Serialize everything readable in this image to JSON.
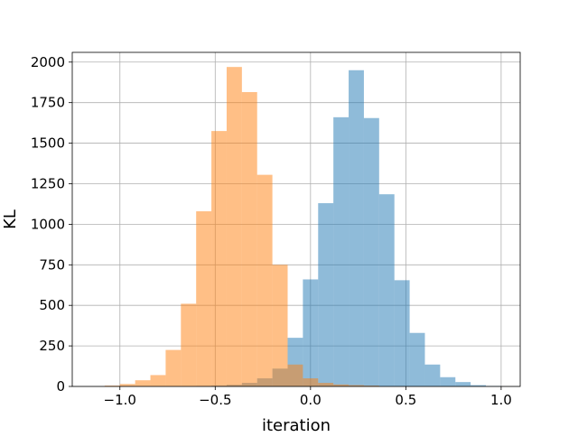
{
  "chart_data": {
    "type": "bar",
    "subtype": "overlapping-histogram",
    "title": "",
    "xlabel": "iteration",
    "ylabel": "KL",
    "xlim": [
      -1.25,
      1.1
    ],
    "ylim": [
      0,
      2060
    ],
    "x_ticks": [
      -1.0,
      -0.5,
      0.0,
      0.5,
      1.0
    ],
    "x_tick_labels": [
      "−1.0",
      "−0.5",
      "0.0",
      "0.5",
      "1.0"
    ],
    "y_ticks": [
      0,
      250,
      500,
      750,
      1000,
      1250,
      1500,
      1750,
      2000
    ],
    "y_tick_labels": [
      "0",
      "250",
      "500",
      "750",
      "1000",
      "1250",
      "1500",
      "1750",
      "2000"
    ],
    "grid": true,
    "legend": false,
    "bin_width": 0.08,
    "series": [
      {
        "color": "#1f77b4",
        "opacity": 0.5,
        "bin_edges_start": -0.6,
        "counts": [
          3,
          5,
          10,
          22,
          50,
          110,
          300,
          660,
          1130,
          1660,
          1950,
          1655,
          1185,
          655,
          330,
          135,
          57,
          27,
          8,
          3
        ]
      },
      {
        "color": "#ff7f0e",
        "opacity": 0.5,
        "bin_edges_start": -1.08,
        "counts": [
          5,
          15,
          38,
          70,
          225,
          510,
          1080,
          1575,
          1970,
          1815,
          1305,
          750,
          135,
          50,
          22,
          12,
          8,
          5
        ]
      }
    ]
  }
}
